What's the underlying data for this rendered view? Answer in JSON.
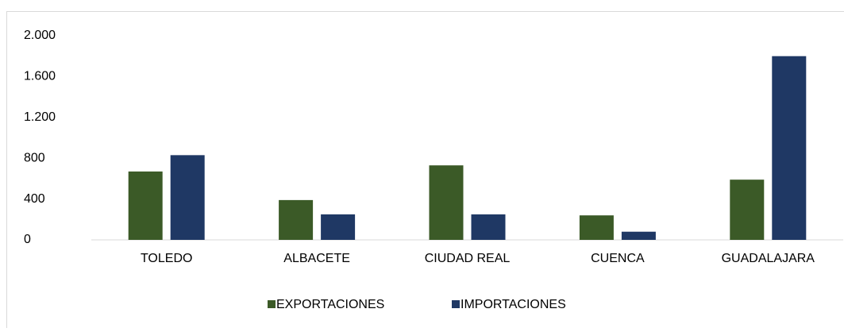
{
  "chart_data": {
    "type": "bar",
    "categories": [
      "TOLEDO",
      "ALBACETE",
      "CIUDAD REAL",
      "CUENCA",
      "GUADALAJARA"
    ],
    "series": [
      {
        "name": "EXPORTACIONES",
        "color": "#3b5a27",
        "values": [
          670,
          390,
          730,
          240,
          590
        ]
      },
      {
        "name": "IMPORTACIONES",
        "color": "#1f3864",
        "values": [
          830,
          250,
          250,
          80,
          1800
        ]
      }
    ],
    "ylim": [
      0,
      2000
    ],
    "yticks": [
      0,
      400,
      800,
      {
        "value": 1200,
        "label": "1.200"
      },
      {
        "value": 1600,
        "label": "1.600"
      },
      {
        "value": 2000,
        "label": "2.000"
      }
    ],
    "grid": false,
    "legend": "bottom"
  }
}
